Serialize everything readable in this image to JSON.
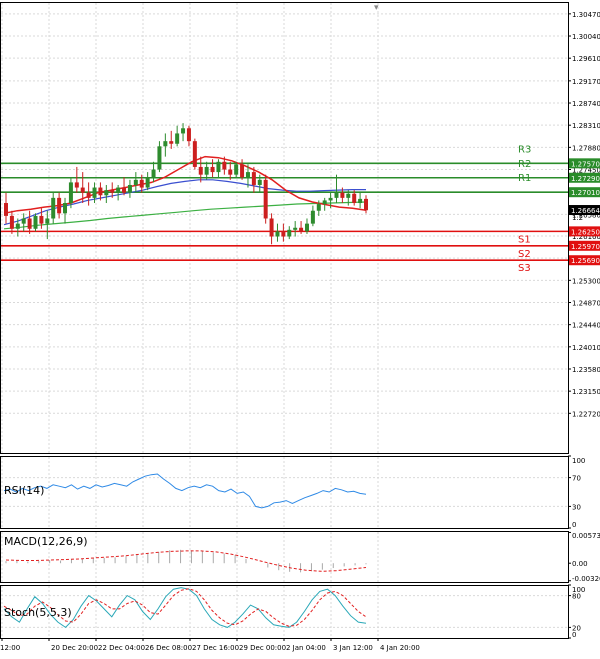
{
  "colors": {
    "grid": "#d9d9d9",
    "bull": "#2e8b2e",
    "bear": "#cc1f1f",
    "resistance": "#2a8c2a",
    "support": "#e01010",
    "ma_fast": "#e21f1f",
    "ma_mid": "#3b4fd0",
    "ma_slow": "#3cb043",
    "rsi": "#2f8ae6",
    "macd_signal": "#e21f1f",
    "stoch_d": "#e21f1f",
    "stoch_k": "#2aa8b8",
    "label_bg_r": "#2a8c2a",
    "label_bg_s": "#e01010",
    "last_bg": "#000000"
  },
  "chart_data": [
    {
      "type": "candlestick",
      "title": "",
      "ylim": [
        1.2195,
        1.307
      ],
      "y_ticks": [
        "1.30470",
        "1.30040",
        "1.29610",
        "1.29170",
        "1.28740",
        "1.28310",
        "1.27880",
        "1.27450",
        "1.27010",
        "1.26580",
        "1.26160",
        "1.25730",
        "1.25300",
        "1.24870",
        "1.24440",
        "1.24010",
        "1.23580",
        "1.23150",
        "1.22720"
      ],
      "x_labels": [
        "12:00",
        "20 Dec 20:00",
        "22 Dec 04:00",
        "26 Dec 08:00",
        "27 Dec 16:00",
        "29 Dec 00:00",
        "2 Jan 04:00",
        "3 Jan 12:00",
        "4 Jan 20:00"
      ],
      "ohlc": [
        [
          1.268,
          1.27,
          1.264,
          1.2655
        ],
        [
          1.2655,
          1.2665,
          1.262,
          1.263
        ],
        [
          1.263,
          1.265,
          1.2615,
          1.264
        ],
        [
          1.264,
          1.266,
          1.2625,
          1.265
        ],
        [
          1.265,
          1.2665,
          1.262,
          1.263
        ],
        [
          1.263,
          1.266,
          1.2625,
          1.2655
        ],
        [
          1.2655,
          1.267,
          1.263,
          1.264
        ],
        [
          1.264,
          1.2665,
          1.261,
          1.265
        ],
        [
          1.265,
          1.27,
          1.264,
          1.269
        ],
        [
          1.269,
          1.27,
          1.265,
          1.266
        ],
        [
          1.266,
          1.269,
          1.264,
          1.268
        ],
        [
          1.268,
          1.273,
          1.267,
          1.272
        ],
        [
          1.272,
          1.275,
          1.27,
          1.271
        ],
        [
          1.271,
          1.274,
          1.268,
          1.27
        ],
        [
          1.27,
          1.272,
          1.2675,
          1.269
        ],
        [
          1.269,
          1.272,
          1.268,
          1.271
        ],
        [
          1.271,
          1.272,
          1.2685,
          1.2695
        ],
        [
          1.2695,
          1.2715,
          1.268,
          1.2705
        ],
        [
          1.2705,
          1.272,
          1.269,
          1.27
        ],
        [
          1.27,
          1.2715,
          1.2685,
          1.271
        ],
        [
          1.271,
          1.273,
          1.2695,
          1.27
        ],
        [
          1.27,
          1.2725,
          1.269,
          1.2715
        ],
        [
          1.2715,
          1.274,
          1.27,
          1.2725
        ],
        [
          1.2725,
          1.2735,
          1.27,
          1.271
        ],
        [
          1.271,
          1.274,
          1.2705,
          1.273
        ],
        [
          1.273,
          1.276,
          1.272,
          1.2745
        ],
        [
          1.2745,
          1.28,
          1.274,
          1.279
        ],
        [
          1.279,
          1.2815,
          1.277,
          1.28
        ],
        [
          1.28,
          1.282,
          1.2785,
          1.2795
        ],
        [
          1.2795,
          1.283,
          1.279,
          1.2815
        ],
        [
          1.2815,
          1.2835,
          1.28,
          1.2825
        ],
        [
          1.2825,
          1.283,
          1.279,
          1.28
        ],
        [
          1.28,
          1.2805,
          1.2745,
          1.275
        ],
        [
          1.275,
          1.277,
          1.272,
          1.2735
        ],
        [
          1.2735,
          1.276,
          1.2725,
          1.275
        ],
        [
          1.275,
          1.2765,
          1.273,
          1.274
        ],
        [
          1.274,
          1.2765,
          1.273,
          1.276
        ],
        [
          1.276,
          1.277,
          1.2735,
          1.2745
        ],
        [
          1.2745,
          1.276,
          1.2725,
          1.2735
        ],
        [
          1.2735,
          1.276,
          1.273,
          1.2755
        ],
        [
          1.2755,
          1.2765,
          1.2725,
          1.273
        ],
        [
          1.273,
          1.2755,
          1.271,
          1.274
        ],
        [
          1.274,
          1.275,
          1.27,
          1.2715
        ],
        [
          1.2715,
          1.2735,
          1.27,
          1.2725
        ],
        [
          1.2725,
          1.2735,
          1.264,
          1.265
        ],
        [
          1.265,
          1.266,
          1.26,
          1.2615
        ],
        [
          1.2615,
          1.264,
          1.2605,
          1.2625
        ],
        [
          1.2625,
          1.264,
          1.2605,
          1.2615
        ],
        [
          1.2615,
          1.2635,
          1.261,
          1.2628
        ],
        [
          1.2628,
          1.2645,
          1.2615,
          1.2632
        ],
        [
          1.2632,
          1.2645,
          1.262,
          1.2625
        ],
        [
          1.2625,
          1.265,
          1.262,
          1.264
        ],
        [
          1.264,
          1.2675,
          1.2635,
          1.2665
        ],
        [
          1.2665,
          1.2685,
          1.2655,
          1.2678
        ],
        [
          1.2678,
          1.269,
          1.2665,
          1.2685
        ],
        [
          1.2685,
          1.27,
          1.267,
          1.269
        ],
        [
          1.269,
          1.2735,
          1.268,
          1.27
        ],
        [
          1.27,
          1.271,
          1.268,
          1.269
        ],
        [
          1.269,
          1.2705,
          1.2675,
          1.2698
        ],
        [
          1.2698,
          1.2705,
          1.2675,
          1.268
        ],
        [
          1.268,
          1.27,
          1.267,
          1.2688
        ],
        [
          1.2688,
          1.2695,
          1.266,
          1.2666
        ]
      ],
      "ma_fast": [
        1.266,
        1.2665,
        1.2668,
        1.2672,
        1.2675,
        1.268,
        1.269,
        1.27,
        1.2705,
        1.271,
        1.2715,
        1.272,
        1.273,
        1.2745,
        1.276,
        1.277,
        1.2768,
        1.2762,
        1.2752,
        1.274,
        1.2725,
        1.2705,
        1.269,
        1.2682,
        1.2677,
        1.2672,
        1.267,
        1.2666
      ],
      "ma_mid": [
        1.2638,
        1.2645,
        1.2655,
        1.2665,
        1.2672,
        1.2678,
        1.2685,
        1.269,
        1.2695,
        1.27,
        1.2705,
        1.2712,
        1.2718,
        1.2722,
        1.2725,
        1.2725,
        1.2722,
        1.2718,
        1.2713,
        1.2708,
        1.2705,
        1.2703,
        1.2703,
        1.2704,
        1.2705,
        1.2706,
        1.2706
      ],
      "ma_slow": [
        1.263,
        1.2633,
        1.2637,
        1.264,
        1.2643,
        1.2646,
        1.265,
        1.2653,
        1.2656,
        1.2659,
        1.2662,
        1.2665,
        1.2668,
        1.267,
        1.2672,
        1.2674,
        1.2676,
        1.2678,
        1.2679,
        1.268,
        1.2681,
        1.2682
      ],
      "levels": [
        {
          "name": "R3",
          "value": 1.2757,
          "label": "1.27570",
          "kind": "resistance"
        },
        {
          "name": "R2",
          "value": 1.2729,
          "label": "1.27290",
          "kind": "resistance"
        },
        {
          "name": "R1",
          "value": 1.2701,
          "label": "1.27010",
          "kind": "resistance"
        },
        {
          "name": "S1",
          "value": 1.2625,
          "label": "1.26250",
          "kind": "support"
        },
        {
          "name": "S2",
          "value": 1.2597,
          "label": "1.25970",
          "kind": "support"
        },
        {
          "name": "S3",
          "value": 1.2569,
          "label": "1.25690",
          "kind": "support"
        }
      ],
      "last_price": {
        "value": 1.26664,
        "label": "1.26664"
      },
      "partial_tick": "1.2"
    },
    {
      "type": "line",
      "title": "RSI(14)",
      "ylim": [
        0,
        100
      ],
      "y_ticks": [
        "100",
        "70",
        "30",
        "0"
      ],
      "y_tick_values": [
        100,
        70,
        30,
        0
      ],
      "rsi": [
        52,
        54,
        50,
        55,
        52,
        56,
        58,
        55,
        60,
        58,
        56,
        60,
        54,
        58,
        55,
        60,
        57,
        59,
        62,
        60,
        58,
        64,
        68,
        72,
        74,
        75,
        68,
        62,
        55,
        52,
        56,
        58,
        56,
        60,
        58,
        52,
        50,
        54,
        48,
        50,
        44,
        30,
        28,
        30,
        35,
        36,
        38,
        34,
        38,
        42,
        45,
        48,
        52,
        50,
        55,
        53,
        50,
        51,
        48,
        47
      ]
    },
    {
      "type": "bar",
      "title": "MACD(12,26,9)",
      "ylim": [
        -0.0035,
        0.006
      ],
      "y_ticks": [
        "0.005731",
        "0.00",
        "-0.003269"
      ],
      "y_tick_values": [
        0.005731,
        0.0,
        -0.003269
      ],
      "histogram": [
        0.0004,
        0.0005,
        0.0003,
        0.0004,
        0.0006,
        0.0005,
        0.0007,
        0.0008,
        0.0009,
        0.001,
        0.0011,
        0.0013,
        0.0016,
        0.0018,
        0.0021,
        0.0024,
        0.0025,
        0.0024,
        0.0022,
        0.002,
        0.0018,
        0.0015,
        0.0008,
        0.0,
        -0.0008,
        -0.0013,
        -0.0016,
        -0.0017,
        -0.0015,
        -0.0012,
        -0.0009,
        -0.0006,
        -0.0004,
        -0.0002
      ],
      "signal": [
        0.0006,
        0.0005,
        0.0005,
        0.0006,
        0.0007,
        0.0008,
        0.001,
        0.0012,
        0.0014,
        0.0017,
        0.002,
        0.0022,
        0.0023,
        0.0023,
        0.0021,
        0.0017,
        0.0011,
        0.0004,
        -0.0003,
        -0.0009,
        -0.0013,
        -0.0015,
        -0.0014,
        -0.0011,
        -0.0008
      ]
    },
    {
      "type": "line",
      "title": "Stoch(5,5,3)",
      "ylim": [
        0,
        100
      ],
      "y_ticks": [
        "100",
        "80",
        "20",
        "0"
      ],
      "y_tick_values": [
        100,
        80,
        20,
        0
      ],
      "k": [
        55,
        40,
        30,
        55,
        78,
        65,
        45,
        30,
        20,
        35,
        60,
        80,
        70,
        55,
        40,
        62,
        80,
        72,
        50,
        35,
        55,
        78,
        92,
        95,
        92,
        80,
        55,
        35,
        25,
        20,
        30,
        45,
        62,
        55,
        38,
        25,
        22,
        20,
        30,
        50,
        72,
        88,
        92,
        80,
        60,
        42,
        30,
        28
      ],
      "d": [
        60,
        52,
        42,
        45,
        60,
        68,
        58,
        44,
        32,
        30,
        45,
        65,
        72,
        65,
        55,
        55,
        65,
        70,
        62,
        48,
        45,
        62,
        80,
        90,
        93,
        88,
        72,
        52,
        38,
        28,
        25,
        32,
        45,
        55,
        50,
        38,
        28,
        22,
        24,
        35,
        52,
        72,
        85,
        88,
        80,
        65,
        50,
        40
      ]
    }
  ]
}
